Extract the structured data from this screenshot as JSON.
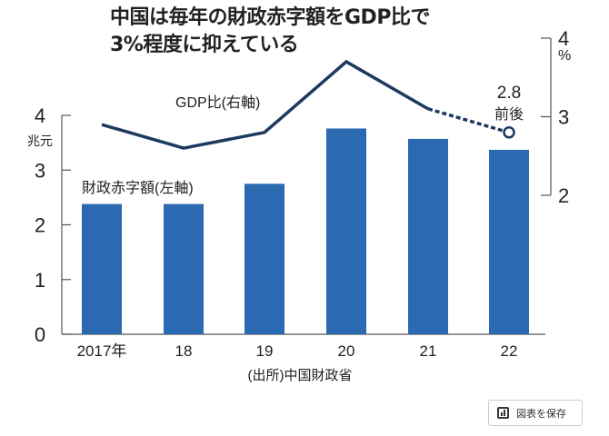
{
  "title_lines": [
    "中国は毎年の財政赤字額をGDP比で",
    "3%程度に抑えている"
  ],
  "save_button": {
    "label": "図表を保存",
    "icon": "bar-chart-icon"
  },
  "chart_data": {
    "type": "bar+line",
    "title": "中国は毎年の財政赤字額をGDP比で3%程度に抑えている",
    "categories": [
      "2017年",
      "18",
      "19",
      "20",
      "21",
      "22"
    ],
    "series": [
      {
        "name": "財政赤字額(左軸)",
        "type": "bar",
        "axis": "left",
        "values": [
          2.38,
          2.38,
          2.75,
          3.76,
          3.57,
          3.37
        ],
        "color": "#2b69b0"
      },
      {
        "name": "GDP比(右軸)",
        "type": "line",
        "axis": "right",
        "values": [
          2.9,
          2.6,
          2.8,
          3.7,
          3.1,
          2.8
        ],
        "dashed_from_index": 4,
        "color": "#1e3a5f"
      }
    ],
    "left_axis": {
      "unit": "兆元",
      "ticks": [
        "0",
        "1",
        "2",
        "3",
        "4"
      ],
      "range": [
        0,
        4
      ]
    },
    "right_axis": {
      "unit": "%",
      "ticks": [
        "2",
        "3",
        "4"
      ],
      "range": [
        2,
        4
      ]
    },
    "annotation": {
      "value": "2.8",
      "text": "前後"
    },
    "source": "(出所)中国財政省",
    "legend_bar": "財政赤字額(左軸)",
    "legend_line": "GDP比(右軸)"
  }
}
